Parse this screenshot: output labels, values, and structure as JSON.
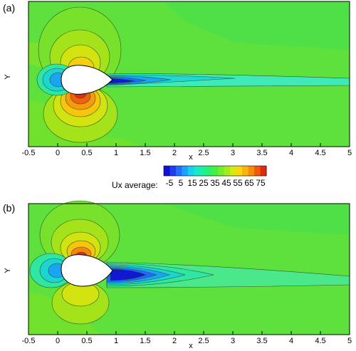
{
  "panel_labels": [
    "(a)",
    "(b)"
  ],
  "colorbar": {
    "title": "Ux average:",
    "tick_labels": [
      "-5",
      "5",
      "15",
      "25",
      "35",
      "45",
      "55",
      "65",
      "75"
    ],
    "range": [
      -10,
      80
    ],
    "colors": [
      "#1010d8",
      "#1f3cf0",
      "#2070ff",
      "#1fa0ff",
      "#18cff0",
      "#16e8c8",
      "#1ef09a",
      "#2af070",
      "#44ee44",
      "#72ec2c",
      "#a6ea1a",
      "#d8e810",
      "#f6d80c",
      "#fbb40a",
      "#f88a0c",
      "#f05a0e",
      "#e02a12"
    ]
  },
  "chart_data": [
    {
      "type": "heatmap",
      "panel": "(a)",
      "xlabel": "x",
      "ylabel": "Y",
      "xlim": [
        -0.5,
        5
      ],
      "x_ticks": [
        "-0.5",
        "0",
        "0.5",
        "1",
        "1.5",
        "2",
        "2.5",
        "3",
        "3.5",
        "4",
        "4.5",
        "5"
      ],
      "field": "Ux average",
      "background_value": 45,
      "wake_min_value": -5,
      "max_value": 75
    },
    {
      "type": "heatmap",
      "panel": "(b)",
      "xlabel": "x",
      "ylabel": "Y",
      "xlim": [
        -0.5,
        5
      ],
      "x_ticks": [
        "-0.5",
        "0",
        "0.5",
        "1",
        "1.5",
        "2",
        "2.5",
        "3",
        "3.5",
        "4",
        "4.5",
        "5"
      ],
      "field": "Ux average",
      "background_value": 45,
      "wake_min_value": -5,
      "max_value": 75
    }
  ]
}
